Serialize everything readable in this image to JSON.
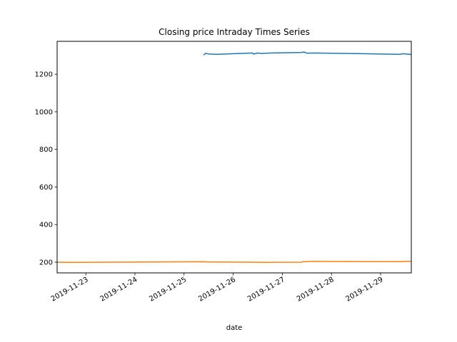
{
  "chart_data": {
    "type": "line",
    "title": "Closing price Intraday Times Series",
    "xlabel": "date",
    "ylabel": "",
    "xlim": [
      "2019-11-22 10:00",
      "2019-11-29 15:00"
    ],
    "ylim": [
      143,
      1375
    ],
    "x_ticks": [
      "2019-11-23",
      "2019-11-24",
      "2019-11-25",
      "2019-11-26",
      "2019-11-27",
      "2019-11-28",
      "2019-11-29"
    ],
    "y_ticks": [
      200,
      400,
      600,
      800,
      1000,
      1200
    ],
    "grid": false,
    "series": [
      {
        "color": "#1f77b4",
        "points": [
          [
            "2019-11-25 09:30",
            1302
          ],
          [
            "2019-11-25 10:30",
            1311
          ],
          [
            "2019-11-25 12:00",
            1308
          ],
          [
            "2019-11-25 16:00",
            1306
          ],
          [
            "2019-11-26 09:30",
            1313
          ],
          [
            "2019-11-26 10:00",
            1307
          ],
          [
            "2019-11-26 12:00",
            1313
          ],
          [
            "2019-11-26 14:00",
            1310
          ],
          [
            "2019-11-26 16:00",
            1312
          ],
          [
            "2019-11-27 09:30",
            1316
          ],
          [
            "2019-11-27 10:30",
            1318
          ],
          [
            "2019-11-27 12:00",
            1312
          ],
          [
            "2019-11-27 16:00",
            1313
          ],
          [
            "2019-11-29 09:30",
            1306
          ],
          [
            "2019-11-29 11:00",
            1309
          ],
          [
            "2019-11-29 15:00",
            1305
          ]
        ]
      },
      {
        "color": "#ff7f0e",
        "points": [
          [
            "2019-11-22 10:00",
            200
          ],
          [
            "2019-11-22 16:00",
            199
          ],
          [
            "2019-11-25 09:30",
            202
          ],
          [
            "2019-11-25 12:00",
            201
          ],
          [
            "2019-11-25 16:00",
            201
          ],
          [
            "2019-11-26 09:30",
            200
          ],
          [
            "2019-11-26 16:00",
            199
          ],
          [
            "2019-11-27 09:30",
            200
          ],
          [
            "2019-11-27 10:00",
            203
          ],
          [
            "2019-11-27 16:00",
            204
          ],
          [
            "2019-11-29 09:30",
            203
          ],
          [
            "2019-11-29 15:00",
            205
          ]
        ]
      }
    ]
  }
}
